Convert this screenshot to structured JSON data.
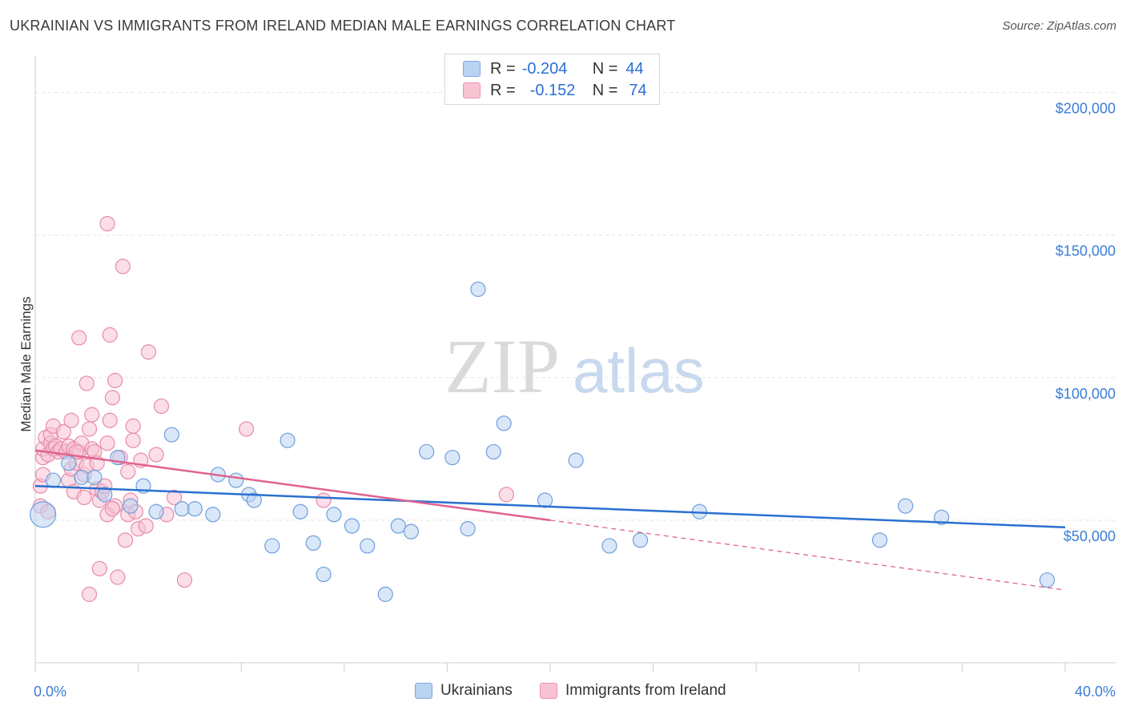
{
  "header": {
    "title": "UKRAINIAN VS IMMIGRANTS FROM IRELAND MEDIAN MALE EARNINGS CORRELATION CHART",
    "source": "Source: ZipAtlas.com"
  },
  "watermark": {
    "zip": "ZIP",
    "atlas": "atlas"
  },
  "colors": {
    "blue": "#2a70d0",
    "blue_fill": "#b9d3f3",
    "pink": "#e0628f",
    "pink_fill": "#f7c3d3",
    "tick": "#3b7dd8"
  },
  "legend": {
    "rows": [
      {
        "r_label": "R =",
        "r_value": "-0.204",
        "n_label": "N =",
        "n_value": "44"
      },
      {
        "r_label": "R =",
        "r_value": "-0.152",
        "n_label": "N =",
        "n_value": "74"
      }
    ]
  },
  "chart_data": {
    "type": "scatter",
    "title": "UKRAINIAN VS IMMIGRANTS FROM IRELAND MEDIAN MALE EARNINGS CORRELATION CHART",
    "ylabel": "Median Male Earnings",
    "xlim": [
      0,
      40
    ],
    "ylim": [
      0,
      210000
    ],
    "x_tick_labels": [
      "0.0%",
      "40.0%"
    ],
    "y_ticks": [
      50000,
      100000,
      150000,
      200000
    ],
    "y_tick_labels": [
      "$50,000",
      "$100,000",
      "$150,000",
      "$200,000"
    ],
    "legend_position": "bottom",
    "grid": true,
    "series": [
      {
        "name": "Ukrainians",
        "r": -0.204,
        "n": 44,
        "trend": {
          "x": [
            0,
            40
          ],
          "y": [
            62000,
            47500
          ]
        },
        "points": [
          [
            0.3,
            52000
          ],
          [
            0.7,
            64000
          ],
          [
            1.3,
            70000
          ],
          [
            1.8,
            65000
          ],
          [
            2.3,
            65000
          ],
          [
            2.7,
            59000
          ],
          [
            3.2,
            72000
          ],
          [
            3.7,
            55000
          ],
          [
            4.2,
            62000
          ],
          [
            4.7,
            53000
          ],
          [
            5.3,
            80000
          ],
          [
            5.7,
            54000
          ],
          [
            6.2,
            54000
          ],
          [
            6.9,
            52000
          ],
          [
            7.1,
            66000
          ],
          [
            7.8,
            64000
          ],
          [
            8.3,
            59000
          ],
          [
            8.5,
            57000
          ],
          [
            9.2,
            41000
          ],
          [
            9.8,
            78000
          ],
          [
            10.3,
            53000
          ],
          [
            10.8,
            42000
          ],
          [
            11.2,
            31000
          ],
          [
            11.6,
            52000
          ],
          [
            12.3,
            48000
          ],
          [
            12.9,
            41000
          ],
          [
            13.6,
            24000
          ],
          [
            14.1,
            48000
          ],
          [
            14.6,
            46000
          ],
          [
            15.2,
            74000
          ],
          [
            16.2,
            72000
          ],
          [
            16.8,
            47000
          ],
          [
            17.2,
            131000
          ],
          [
            17.8,
            74000
          ],
          [
            18.2,
            84000
          ],
          [
            19.8,
            57000
          ],
          [
            21.0,
            71000
          ],
          [
            22.3,
            41000
          ],
          [
            23.5,
            43000
          ],
          [
            25.8,
            53000
          ],
          [
            32.8,
            43000
          ],
          [
            33.8,
            55000
          ],
          [
            35.2,
            51000
          ],
          [
            39.3,
            29000
          ]
        ]
      },
      {
        "name": "Immigrants from Ireland",
        "r": -0.152,
        "n": 74,
        "trend": {
          "x": [
            0,
            20
          ],
          "y": [
            74500,
            50000
          ]
        },
        "trend_dashed": {
          "x": [
            20,
            40
          ],
          "y": [
            50000,
            25500
          ]
        },
        "points": [
          [
            0.2,
            55000
          ],
          [
            0.2,
            62000
          ],
          [
            0.3,
            66000
          ],
          [
            0.3,
            72000
          ],
          [
            0.3,
            75000
          ],
          [
            0.4,
            79000
          ],
          [
            0.5,
            73000
          ],
          [
            0.5,
            53000
          ],
          [
            0.6,
            77000
          ],
          [
            0.6,
            80000
          ],
          [
            0.7,
            83000
          ],
          [
            0.7,
            75000
          ],
          [
            0.8,
            76000
          ],
          [
            0.9,
            74000
          ],
          [
            1.0,
            75000
          ],
          [
            1.1,
            81000
          ],
          [
            1.2,
            74000
          ],
          [
            1.3,
            76000
          ],
          [
            1.3,
            64000
          ],
          [
            1.4,
            85000
          ],
          [
            1.4,
            68000
          ],
          [
            1.5,
            60000
          ],
          [
            1.5,
            75000
          ],
          [
            1.6,
            70000
          ],
          [
            1.7,
            114000
          ],
          [
            1.7,
            74000
          ],
          [
            1.8,
            77000
          ],
          [
            1.9,
            58000
          ],
          [
            1.9,
            66000
          ],
          [
            2.0,
            98000
          ],
          [
            2.0,
            69000
          ],
          [
            2.1,
            82000
          ],
          [
            2.2,
            87000
          ],
          [
            2.2,
            75000
          ],
          [
            2.3,
            74000
          ],
          [
            2.4,
            61000
          ],
          [
            2.4,
            70000
          ],
          [
            2.5,
            33000
          ],
          [
            2.5,
            57000
          ],
          [
            2.6,
            60000
          ],
          [
            2.7,
            62000
          ],
          [
            2.8,
            52000
          ],
          [
            2.8,
            77000
          ],
          [
            2.9,
            85000
          ],
          [
            2.9,
            115000
          ],
          [
            3.0,
            93000
          ],
          [
            3.1,
            99000
          ],
          [
            3.1,
            55000
          ],
          [
            2.1,
            24000
          ],
          [
            3.0,
            54000
          ],
          [
            3.2,
            30000
          ],
          [
            3.3,
            72000
          ],
          [
            3.4,
            139000
          ],
          [
            3.5,
            43000
          ],
          [
            3.6,
            52000
          ],
          [
            3.6,
            67000
          ],
          [
            3.7,
            57000
          ],
          [
            3.8,
            78000
          ],
          [
            3.8,
            83000
          ],
          [
            3.9,
            53000
          ],
          [
            4.0,
            47000
          ],
          [
            4.1,
            71000
          ],
          [
            4.3,
            48000
          ],
          [
            4.4,
            109000
          ],
          [
            4.7,
            73000
          ],
          [
            4.9,
            90000
          ],
          [
            5.1,
            52000
          ],
          [
            5.4,
            58000
          ],
          [
            5.8,
            29000
          ],
          [
            2.8,
            154000
          ],
          [
            8.2,
            82000
          ],
          [
            11.2,
            57000
          ],
          [
            18.3,
            59000
          ],
          [
            1.6,
            74000
          ]
        ]
      }
    ]
  }
}
